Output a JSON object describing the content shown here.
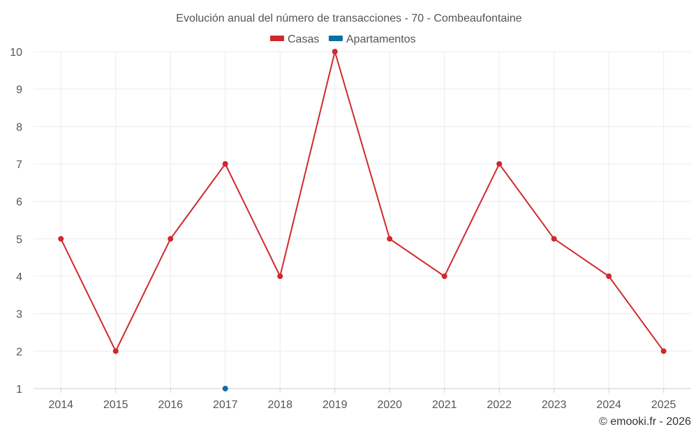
{
  "chart_data": {
    "type": "line",
    "title": "Evolución anual del número de transacciones - 70 - Combeaufontaine",
    "categories": [
      "2014",
      "2015",
      "2016",
      "2017",
      "2018",
      "2019",
      "2020",
      "2021",
      "2022",
      "2023",
      "2024",
      "2025"
    ],
    "ylim": [
      1,
      10
    ],
    "yticks": [
      1,
      2,
      3,
      4,
      5,
      6,
      7,
      8,
      9,
      10
    ],
    "grid": true,
    "legend_position": "top-center",
    "series": [
      {
        "name": "Casas",
        "color": "#d0282c",
        "values": [
          5,
          2,
          5,
          7,
          4,
          10,
          5,
          4,
          7,
          5,
          4,
          2
        ]
      },
      {
        "name": "Apartamentos",
        "color": "#0b6fa4",
        "values": [
          null,
          null,
          null,
          1,
          null,
          null,
          null,
          null,
          null,
          null,
          null,
          null
        ]
      }
    ],
    "credit": "© emooki.fr - 2026"
  }
}
